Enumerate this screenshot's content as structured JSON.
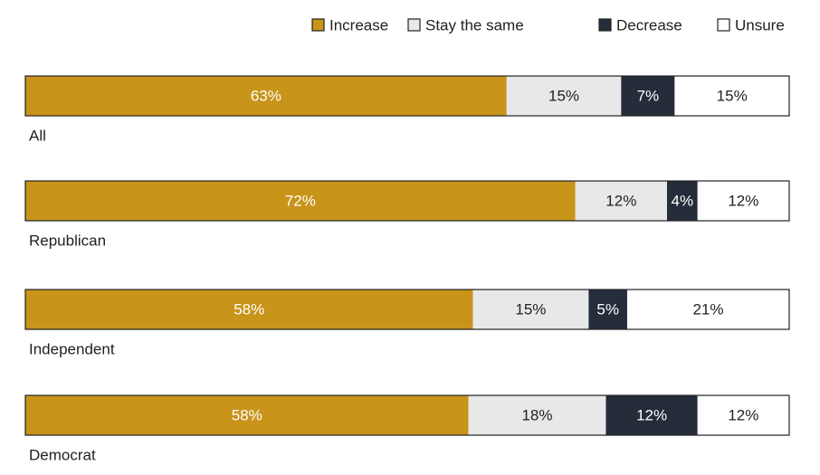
{
  "chart_data": {
    "type": "stacked-bar-horizontal",
    "categories": [
      "All",
      "Republican",
      "Independent",
      "Democrat"
    ],
    "series": [
      {
        "name": "Increase",
        "color": "#c8941a",
        "values": [
          63,
          72,
          58,
          58
        ],
        "value_labels": [
          "63%",
          "72%",
          "58%",
          "58%"
        ]
      },
      {
        "name": "Stay the same",
        "color": "#e8e8e8",
        "values": [
          15,
          12,
          15,
          18
        ],
        "value_labels": [
          "15%",
          "12%",
          "15%",
          "18%"
        ]
      },
      {
        "name": "Decrease",
        "color": "#252d3a",
        "values": [
          7,
          4,
          5,
          12
        ],
        "value_labels": [
          "7%",
          "4%",
          "5%",
          "12%"
        ]
      },
      {
        "name": "Unsure",
        "color": "#ffffff",
        "values": [
          15,
          12,
          21,
          12
        ],
        "value_labels": [
          "15%",
          "12%",
          "21%",
          "12%"
        ]
      }
    ],
    "legend": "top-right"
  }
}
